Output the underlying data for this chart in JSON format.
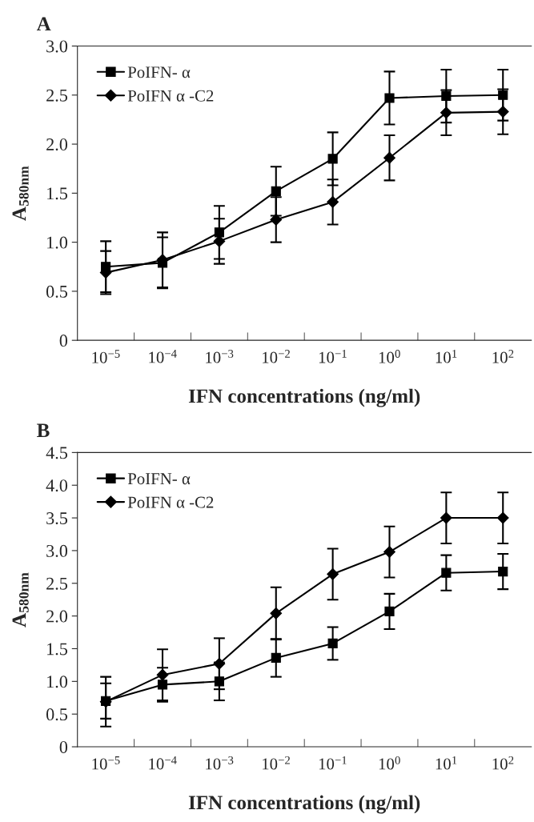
{
  "chart_data": [
    {
      "type": "line",
      "title": "A",
      "xlabel": "IFN concentrations (ng/ml)",
      "ylabel": "A$_{580nm}$",
      "categories": [
        "10$^{−5}$",
        "10$^{−4}$",
        "10$^{−3}$",
        "10$^{−2}$",
        "10$^{−1}$",
        "10$^{0}$",
        "10$^{1}$",
        "10$^{2}$"
      ],
      "ylim": [
        0,
        3.0
      ],
      "yticks": [
        0,
        {
          "value": 0.5,
          "label": "0.5"
        },
        {
          "value": 1.0,
          "label": "1.0"
        },
        {
          "value": 1.5,
          "label": "1.5"
        },
        {
          "value": 2.0,
          "label": "2.0"
        },
        {
          "value": 2.5,
          "label": "2.5"
        },
        {
          "value": 3.0,
          "label": "3.0"
        }
      ],
      "grid": false,
      "legend": "top left",
      "line_style": "solid",
      "series": [
        {
          "name": "PoIFN- α",
          "color": "#000000",
          "marker": "square",
          "values": [
            0.75,
            0.79,
            1.1,
            1.52,
            1.85,
            2.47,
            2.49,
            2.5
          ],
          "errors": [
            0.26,
            0.26,
            0.27,
            0.25,
            0.27,
            0.27,
            0.27,
            0.26
          ]
        },
        {
          "name": "PoIFN α -C2",
          "color": "#000000",
          "marker": "diamond",
          "values": [
            0.69,
            0.82,
            1.01,
            1.23,
            1.41,
            1.86,
            2.32,
            2.33
          ],
          "errors": [
            0.22,
            0.28,
            0.23,
            0.23,
            0.23,
            0.23,
            0.23,
            0.23
          ]
        }
      ]
    },
    {
      "type": "line",
      "title": "B",
      "xlabel": "IFN concentrations (ng/ml)",
      "ylabel": "A$_{580nm}$",
      "categories": [
        "10$^{−5}$",
        "10$^{−4}$",
        "10$^{−3}$",
        "10$^{−2}$",
        "10$^{−1}$",
        "10$^{0}$",
        "10$^{1}$",
        "10$^{2}$"
      ],
      "ylim": [
        0,
        4.5
      ],
      "yticks": [
        0,
        {
          "value": 0.5,
          "label": "0.5"
        },
        {
          "value": 1.0,
          "label": "1.0"
        },
        {
          "value": 1.5,
          "label": "1.5"
        },
        {
          "value": 2.0,
          "label": "2.0"
        },
        {
          "value": 2.5,
          "label": "2.5"
        },
        {
          "value": 3.0,
          "label": "3.0"
        },
        {
          "value": 3.5,
          "label": "3.5"
        },
        {
          "value": 4.0,
          "label": "4.0"
        },
        {
          "value": 4.5,
          "label": "4.5"
        }
      ],
      "grid": false,
      "legend": "top left",
      "line_style": "solid",
      "series": [
        {
          "name": "PoIFN- α",
          "color": "#000000",
          "marker": "square",
          "values": [
            0.7,
            0.95,
            1.0,
            1.36,
            1.58,
            2.07,
            2.66,
            2.68
          ],
          "errors": [
            0.27,
            0.26,
            0.29,
            0.29,
            0.25,
            0.27,
            0.27,
            0.27
          ]
        },
        {
          "name": "PoIFN α -C2",
          "color": "#000000",
          "marker": "diamond",
          "values": [
            0.69,
            1.1,
            1.27,
            2.04,
            2.64,
            2.98,
            3.5,
            3.5
          ],
          "errors": [
            0.38,
            0.39,
            0.39,
            0.4,
            0.39,
            0.39,
            0.39,
            0.39
          ]
        }
      ]
    }
  ]
}
